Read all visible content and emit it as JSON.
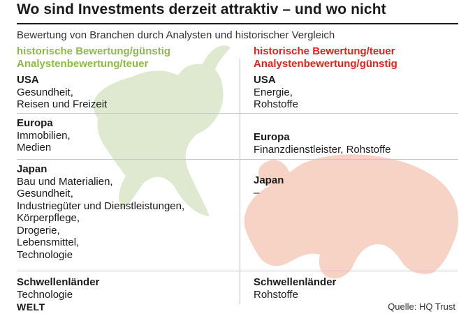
{
  "title": "Wo sind Investments derzeit attraktiv – und wo nicht",
  "subtitle": "Bewertung von Branchen durch Analysten und historischer Vergleich",
  "columns": {
    "left": {
      "header_line1": "historische Bewertung/günstig",
      "header_line2": "Analystenbewertung/teuer",
      "color": "#8dbb45",
      "cells": [
        {
          "region": "USA",
          "items": [
            "Gesundheit,",
            "Reisen und Freizeit"
          ]
        },
        {
          "region": "Europa",
          "items": [
            "Immobilien,",
            "Medien"
          ]
        },
        {
          "region": "Japan",
          "items": [
            "Bau und Materialien,",
            "Gesundheit,",
            "Industriegüter und Dienstleistungen,",
            "Körperpflege,",
            "Drogerie,",
            "Lebensmittel,",
            "Technologie"
          ]
        },
        {
          "region": "Schwellenländer",
          "items": [
            "Technologie"
          ]
        }
      ]
    },
    "right": {
      "header_line1": "historische Bewertung/teuer",
      "header_line2": "Analystenbewertung/günstig",
      "color": "#e2231a",
      "cells": [
        {
          "region": "USA",
          "items": [
            "Energie,",
            "Rohstoffe"
          ]
        },
        {
          "region": "Europa",
          "items": [
            "Finanzdienstleister, Rohstoffe"
          ]
        },
        {
          "region": "Japan",
          "items": [
            "–"
          ]
        },
        {
          "region": "Schwellenländer",
          "items": [
            "Rohstoffe"
          ]
        }
      ]
    }
  },
  "footer": {
    "logo": "WELT",
    "source": "Quelle: HQ Trust"
  },
  "illustrations": {
    "bull_color": "#dfe9cf",
    "bear_color": "#f6d3c4"
  }
}
